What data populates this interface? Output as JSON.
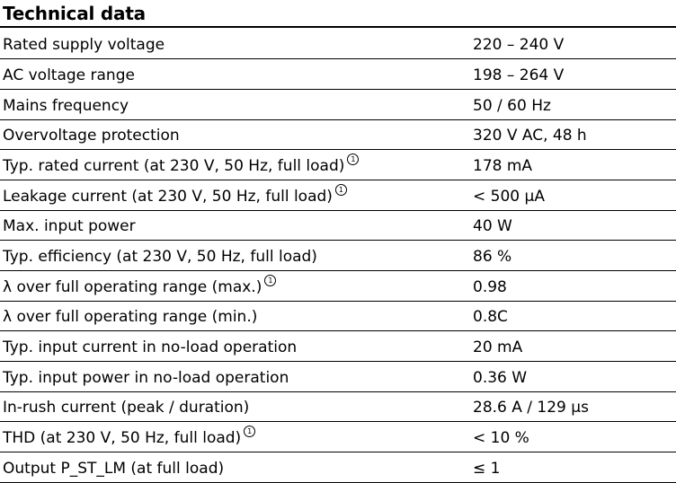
{
  "title": "Technical data",
  "rows": [
    {
      "label": "Rated supply voltage",
      "note": "",
      "value": "220 – 240 V"
    },
    {
      "label": "AC voltage range",
      "note": "",
      "value": "198 – 264 V"
    },
    {
      "label": "Mains frequency",
      "note": "",
      "value": "50 / 60 Hz"
    },
    {
      "label": "Overvoltage protection",
      "note": "",
      "value": "320 V AC, 48 h"
    },
    {
      "label": "Typ. rated current (at 230 V, 50 Hz, full load)",
      "note": "1",
      "value": "178 mA"
    },
    {
      "label": "Leakage current (at 230 V, 50 Hz, full load)",
      "note": "1",
      "value": "< 500 µA"
    },
    {
      "label": "Max. input power",
      "note": "",
      "value": "40 W"
    },
    {
      "label": "Typ. efficiency (at 230 V, 50 Hz, full load)",
      "note": "",
      "value": "86 %"
    },
    {
      "label": "λ over full operating range (max.)",
      "note": "1",
      "value": "0.98"
    },
    {
      "label": "λ over full operating range (min.)",
      "note": "",
      "value": "0.8C"
    },
    {
      "label": "Typ. input current in no-load operation",
      "note": "",
      "value": "20 mA"
    },
    {
      "label": "Typ. input power in no-load operation",
      "note": "",
      "value": "0.36 W"
    },
    {
      "label": "In-rush current (peak / duration)",
      "note": "",
      "value": "28.6 A / 129 µs"
    },
    {
      "label": "THD (at 230 V, 50 Hz, full load)",
      "note": "1",
      "value": "< 10 %"
    },
    {
      "label": "Output P_ST_LM (at full load)",
      "note": "",
      "value": "≤ 1"
    }
  ]
}
